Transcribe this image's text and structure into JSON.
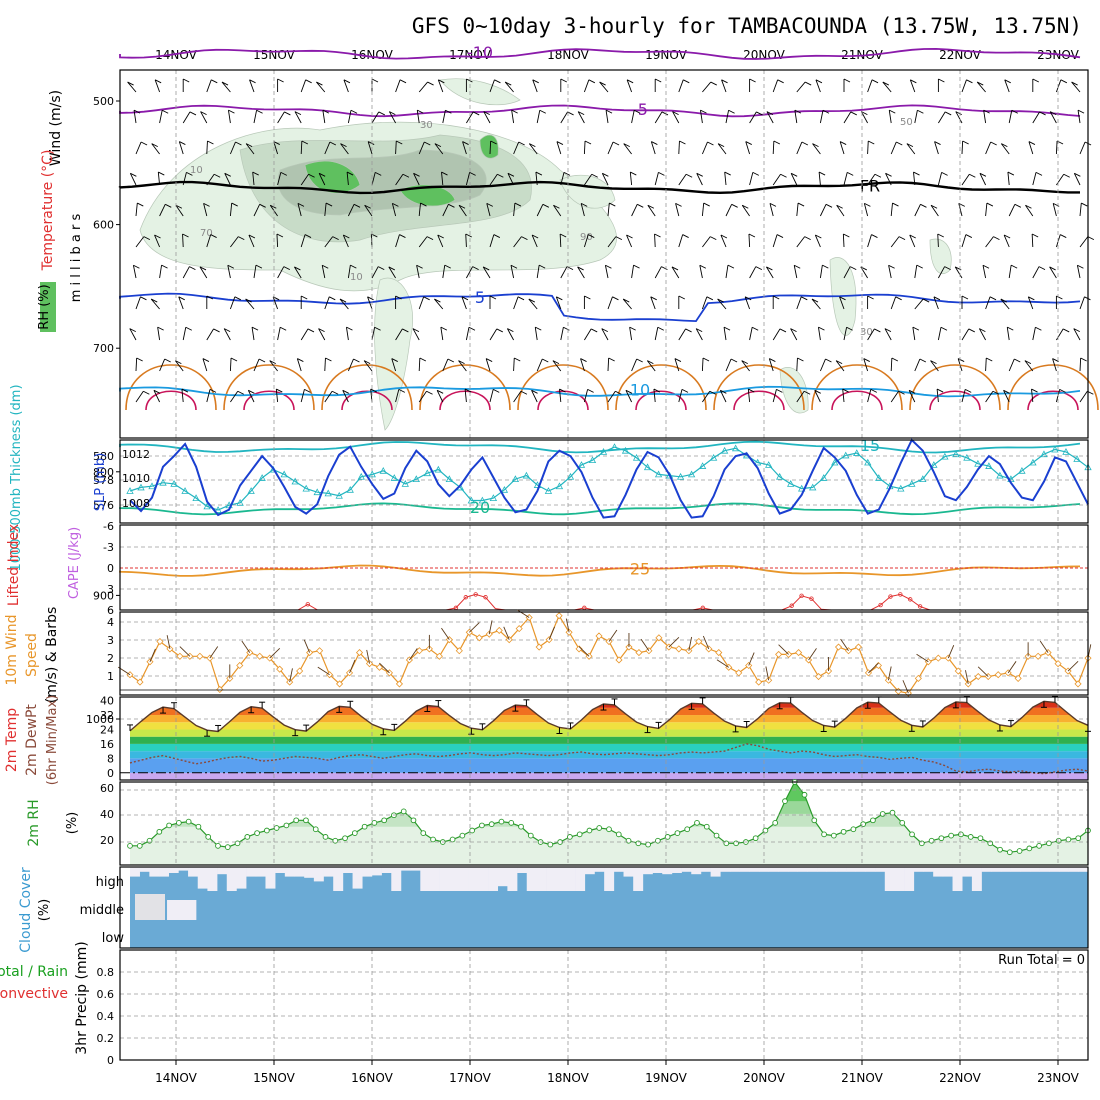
{
  "title": "GFS 0~10day 3-hourly for TAMBACOUNDA (13.75W, 13.75N)",
  "chart_data": {
    "type": "meteogram",
    "dates": [
      "14NOV",
      "15NOV",
      "16NOV",
      "17NOV",
      "18NOV",
      "19NOV",
      "20NOV",
      "21NOV",
      "22NOV",
      "23NOV"
    ],
    "colors": {
      "blue": "#1a3fd0",
      "cyan": "#22b5c0",
      "purple": "#8a1aaa",
      "orange": "#e8962a",
      "rain_total": "#1aa020",
      "rain_conv": "#e03030",
      "cloud": "#6aaad5",
      "rh_line": "#2a9a2a"
    },
    "upper_air": {
      "ylabel_wind": "Wind (m/s)",
      "ylabel_temp": "Temperature (°C)",
      "ylabel_rh": "RH (%)",
      "ylabel_pressure": "m i l l i b a r s",
      "ylim": [
        450,
        1000
      ],
      "yticks": [
        "500",
        "600",
        "700",
        "800",
        "900",
        "1000"
      ],
      "isotherms": [
        {
          "label": "-10",
          "level": 462,
          "color": "#8a1aaa"
        },
        {
          "label": "-5",
          "level": 508,
          "color": "#8a1aaa"
        },
        {
          "label": "FR",
          "level": 570,
          "color": "#000000"
        },
        {
          "label": "5",
          "level": 660,
          "color": "#1a3fd0"
        },
        {
          "label": "10",
          "level": 735,
          "color": "#1a9ae0"
        },
        {
          "label": "15",
          "level": 780,
          "color": "#22b5c0"
        },
        {
          "label": "20",
          "level": 830,
          "color": "#1ab890"
        },
        {
          "label": "25",
          "level": 880,
          "color": "#e8962a"
        }
      ],
      "rh_contour_labels": [
        "10",
        "30",
        "50",
        "70",
        "90"
      ]
    },
    "thickness_slp": {
      "ylabel_left": "1000-500mb Thickness (dm)",
      "ylabel_right": "SLP (mb)",
      "yticks_left": [
        "580",
        "578",
        "576"
      ],
      "yticks_right": [
        "1012",
        "1010",
        "1008"
      ],
      "thickness_range": [
        574.5,
        581.5
      ],
      "slp_range": [
        1006.6,
        1012.8
      ],
      "thickness": [
        577.2,
        577.5,
        577.6,
        577.9,
        577.8,
        577.2,
        576.6,
        575.9,
        575.6,
        576.0,
        576.2,
        577.2,
        578.3,
        579.0,
        578.6,
        578.0,
        577.4,
        577.1,
        577.0,
        576.8,
        577.3,
        578.4,
        578.6,
        578.9,
        578.3,
        577.8,
        578.2,
        578.7,
        579.0,
        578.2,
        577.5,
        576.4,
        576.4,
        576.6,
        577.3,
        578.2,
        578.5,
        577.7,
        577.2,
        577.6,
        578.4,
        579.4,
        579.8,
        580.5,
        580.9,
        580.6,
        580.0,
        579.2,
        578.6,
        578.5,
        578.4,
        578.6,
        579.3,
        580.0,
        580.6,
        580.8,
        580.2,
        579.6,
        579.4,
        578.4,
        577.8,
        577.4,
        577.5,
        578.3,
        579.6,
        580.2,
        580.4,
        579.6,
        578.3,
        577.6,
        577.4,
        577.8,
        578.2,
        579.4,
        580.1,
        580.3,
        580.0,
        579.5,
        579.3,
        578.5,
        578.2,
        578.9,
        579.6,
        580.3,
        580.7,
        580.5,
        579.9,
        579.2
      ],
      "slp": [
        1008.3,
        1007.5,
        1008.5,
        1010.8,
        1011.6,
        1012.5,
        1010.8,
        1008.2,
        1007.2,
        1007.6,
        1009.4,
        1010.5,
        1011.6,
        1010.7,
        1009.3,
        1007.8,
        1007.3,
        1008.0,
        1010.1,
        1011.7,
        1012.3,
        1010.8,
        1009.5,
        1008.4,
        1008.8,
        1010.7,
        1012.0,
        1011.2,
        1009.5,
        1008.6,
        1009.4,
        1010.6,
        1011.5,
        1010.0,
        1008.5,
        1007.4,
        1007.6,
        1009.0,
        1011.2,
        1012.0,
        1011.6,
        1010.4,
        1008.5,
        1007.0,
        1007.1,
        1008.7,
        1010.6,
        1011.9,
        1011.5,
        1010.2,
        1008.3,
        1007.0,
        1007.1,
        1008.6,
        1010.6,
        1011.6,
        1011.8,
        1010.7,
        1008.8,
        1007.3,
        1007.6,
        1008.7,
        1010.5,
        1012.2,
        1011.5,
        1010.5,
        1008.7,
        1007.3,
        1007.6,
        1009.2,
        1011.1,
        1012.8,
        1012.0,
        1010.4,
        1008.6,
        1008.3,
        1009.3,
        1010.6,
        1011.6,
        1011.0,
        1009.6,
        1008.5,
        1008.3,
        1009.7,
        1011.5,
        1011.2,
        1009.6,
        1008.0
      ]
    },
    "stability": {
      "ylabel_li": "Lifted Index",
      "ylabel_cape": "CAPE (J/kg)",
      "yticks": [
        "-6",
        "-3",
        "0",
        "3",
        "6"
      ],
      "lifted_index": [
        6,
        6,
        6,
        6,
        6,
        6,
        6,
        6,
        6,
        6,
        6,
        6,
        6,
        6,
        6,
        6,
        6,
        6,
        5.2,
        6,
        6,
        6,
        6,
        6,
        6,
        6,
        6,
        6,
        6,
        6,
        6,
        6,
        6,
        5.7,
        4.2,
        3.8,
        4.2,
        5.8,
        6,
        6,
        6,
        6,
        6,
        6,
        6,
        6,
        5.7,
        6,
        6,
        6,
        6,
        6,
        6,
        6,
        6,
        6,
        6,
        6,
        5.7,
        6,
        6,
        6,
        6,
        6,
        6,
        6,
        6,
        5.4,
        4.0,
        4.4,
        5.9,
        6,
        6,
        6,
        6,
        6,
        5.3,
        4.1,
        3.8,
        4.5,
        5.5,
        6,
        6,
        6,
        6,
        6,
        6,
        6,
        6,
        6,
        6,
        6,
        6,
        6,
        6,
        6,
        6,
        6
      ]
    },
    "wind10m": {
      "ylabel_1": "10m Wind",
      "ylabel_2": "Speed",
      "ylabel_3": "(m/s) & Barbs",
      "yticks": [
        "4",
        "3",
        "2",
        "1"
      ],
      "ylim": [
        0,
        4.5
      ],
      "speed": [
        1.1,
        0.7,
        1.8,
        2.9,
        2.5,
        2.1,
        2.1,
        2.1,
        2.0,
        0.3,
        0.9,
        1.6,
        2.3,
        2.1,
        2.0,
        1.4,
        0.7,
        1.3,
        2.3,
        2.4,
        1.1,
        0.6,
        1.2,
        2.3,
        1.7,
        1.5,
        1.2,
        0.6,
        1.9,
        2.4,
        2.5,
        2.1,
        3.0,
        2.4,
        3.4,
        3.1,
        3.3,
        3.5,
        3.0,
        3.6,
        4.2,
        2.6,
        3.0,
        4.3,
        3.4,
        2.5,
        2.1,
        3.2,
        2.9,
        1.9,
        2.6,
        2.3,
        2.4,
        3.1,
        2.6,
        2.5,
        2.4,
        2.9,
        2.5,
        2.3,
        1.5,
        1.2,
        1.6,
        0.7,
        0.8,
        2.2,
        2.2,
        2.3,
        1.9,
        1.0,
        1.3,
        2.6,
        2.4,
        2.6,
        1.2,
        1.6,
        0.8,
        0.2,
        0.1,
        0.9,
        1.8,
        2.0,
        2.0,
        1.3,
        0.6,
        1.0,
        1.0,
        1.1,
        1.2,
        0.9,
        2.1,
        2.1,
        2.3,
        1.7,
        1.3,
        0.6,
        2.0
      ]
    },
    "temperature": {
      "ylabel_1": "2m Temp",
      "ylabel_2": "2m DewPt",
      "ylabel_3": "(6hr Min/Max)",
      "yticks": [
        "40",
        "32",
        "24",
        "16",
        "8",
        "0"
      ],
      "ylim": [
        -4,
        42
      ],
      "temp": [
        23.2,
        28.5,
        33.4,
        36.4,
        35.5,
        30.8,
        26.2,
        23.6,
        22.9,
        28.1,
        33.6,
        36.6,
        35.8,
        31.0,
        26.4,
        23.9,
        23.1,
        28.1,
        33.9,
        36.8,
        36.3,
        31.3,
        26.8,
        24.4,
        23.5,
        28.6,
        34.2,
        37.3,
        36.7,
        31.8,
        27.3,
        24.7,
        23.8,
        28.8,
        34.5,
        37.5,
        37.1,
        32.2,
        27.6,
        25.1,
        24.3,
        29.3,
        35.0,
        38.1,
        37.6,
        32.7,
        28.1,
        25.6,
        24.6,
        29.5,
        35.3,
        38.5,
        38.2,
        33.2,
        28.6,
        26.0,
        25.1,
        30.0,
        35.7,
        38.8,
        38.6,
        33.6,
        29.0,
        26.2,
        25.3,
        30.2,
        35.9,
        39.1,
        38.7,
        33.8,
        29.1,
        26.3,
        25.4,
        30.3,
        36.1,
        39.3,
        38.9,
        34.0,
        29.3,
        26.5,
        25.6,
        30.6,
        36.4,
        39.6,
        39.0,
        33.9,
        29.0,
        26.3
      ],
      "dewpoint": [
        5.5,
        7.0,
        8.5,
        9.5,
        8.0,
        6.5,
        5.0,
        6.0,
        7.5,
        8.5,
        9.0,
        8.0,
        6.5,
        7.0,
        8.0,
        9.0,
        8.5,
        8.0,
        7.0,
        8.5,
        9.5,
        10.0,
        9.0,
        8.0,
        9.0,
        10.0,
        10.5,
        9.5,
        9.0,
        9.5,
        10.5,
        11.0,
        10.0,
        9.5,
        10.0,
        11.0,
        10.5,
        10.0,
        9.5,
        10.0,
        11.0,
        11.5,
        10.5,
        10.0,
        10.5,
        11.0,
        10.5,
        10.0,
        9.5,
        10.0,
        11.0,
        11.5,
        11.0,
        11.5,
        12.0,
        14.0,
        16.0,
        15.0,
        13.0,
        12.0,
        11.0,
        12.0,
        11.5,
        10.0,
        9.0,
        9.5,
        10.0,
        9.0,
        8.5,
        7.5,
        8.0,
        8.5,
        7.0,
        6.0,
        4.0,
        1.0,
        0.5,
        1.5,
        2.0,
        1.0,
        0.5,
        1.0,
        0.0,
        -0.5,
        0.5,
        1.5,
        2.0,
        1.0
      ]
    },
    "rh2m": {
      "ylabel": "2m RH",
      "ylabel_unit": "(%)",
      "yticks": [
        "60",
        "40",
        "20"
      ],
      "ylim": [
        0,
        65
      ],
      "values": [
        15,
        15,
        19,
        26,
        31,
        33,
        34,
        30,
        22,
        15,
        14,
        17,
        22,
        25,
        27,
        29,
        31,
        35,
        35,
        28,
        22,
        19,
        21,
        25,
        30,
        33,
        35,
        39,
        42,
        35,
        25,
        20,
        18,
        20,
        23,
        27,
        31,
        32,
        34,
        33,
        30,
        23,
        18,
        16,
        18,
        22,
        24,
        27,
        29,
        28,
        24,
        19,
        17,
        16,
        19,
        22,
        25,
        28,
        33,
        30,
        23,
        17,
        17,
        18,
        21,
        27,
        33,
        50,
        65,
        55,
        35,
        24,
        23,
        26,
        28,
        32,
        35,
        40,
        41,
        33,
        24,
        17,
        19,
        21,
        23,
        24,
        22,
        21,
        17,
        12,
        10,
        11,
        13,
        15,
        17,
        19,
        20,
        21,
        27
      ]
    },
    "cloud": {
      "ylabel": "Cloud Cover",
      "ylabel_unit": "(%)",
      "levels": [
        "high",
        "middle",
        "low"
      ],
      "high": [
        60,
        80,
        60,
        60,
        75,
        85,
        60,
        10,
        0,
        70,
        0,
        10,
        60,
        60,
        10,
        75,
        60,
        60,
        55,
        40,
        60,
        0,
        75,
        10,
        60,
        65,
        75,
        0,
        85,
        85,
        0,
        0,
        0,
        0,
        0,
        0,
        0,
        0,
        20,
        0,
        75,
        0,
        0,
        0,
        0,
        0,
        0,
        70,
        80,
        0,
        80,
        60,
        0,
        70,
        75,
        70,
        75,
        80,
        70,
        80,
        60,
        80,
        80,
        80,
        80,
        80,
        80,
        80,
        80,
        80,
        80,
        80,
        80,
        80,
        80,
        80,
        80,
        80,
        0,
        0,
        0,
        80,
        80,
        60,
        60,
        0,
        60,
        0,
        80,
        80,
        80,
        80,
        80,
        80,
        80,
        80,
        80,
        80,
        80
      ],
      "middle_gap_cols": [
        3,
        4,
        5
      ]
    },
    "precip": {
      "ylabel": "3hr Precip (mm)",
      "legend_total": "Total / Rain",
      "legend_conv": "Convective",
      "yticks": [
        "0.8",
        "0.6",
        "0.4",
        "0.2",
        "0"
      ],
      "ylim": [
        0,
        1.0
      ],
      "run_total_label": "Run Total = 0"
    }
  }
}
